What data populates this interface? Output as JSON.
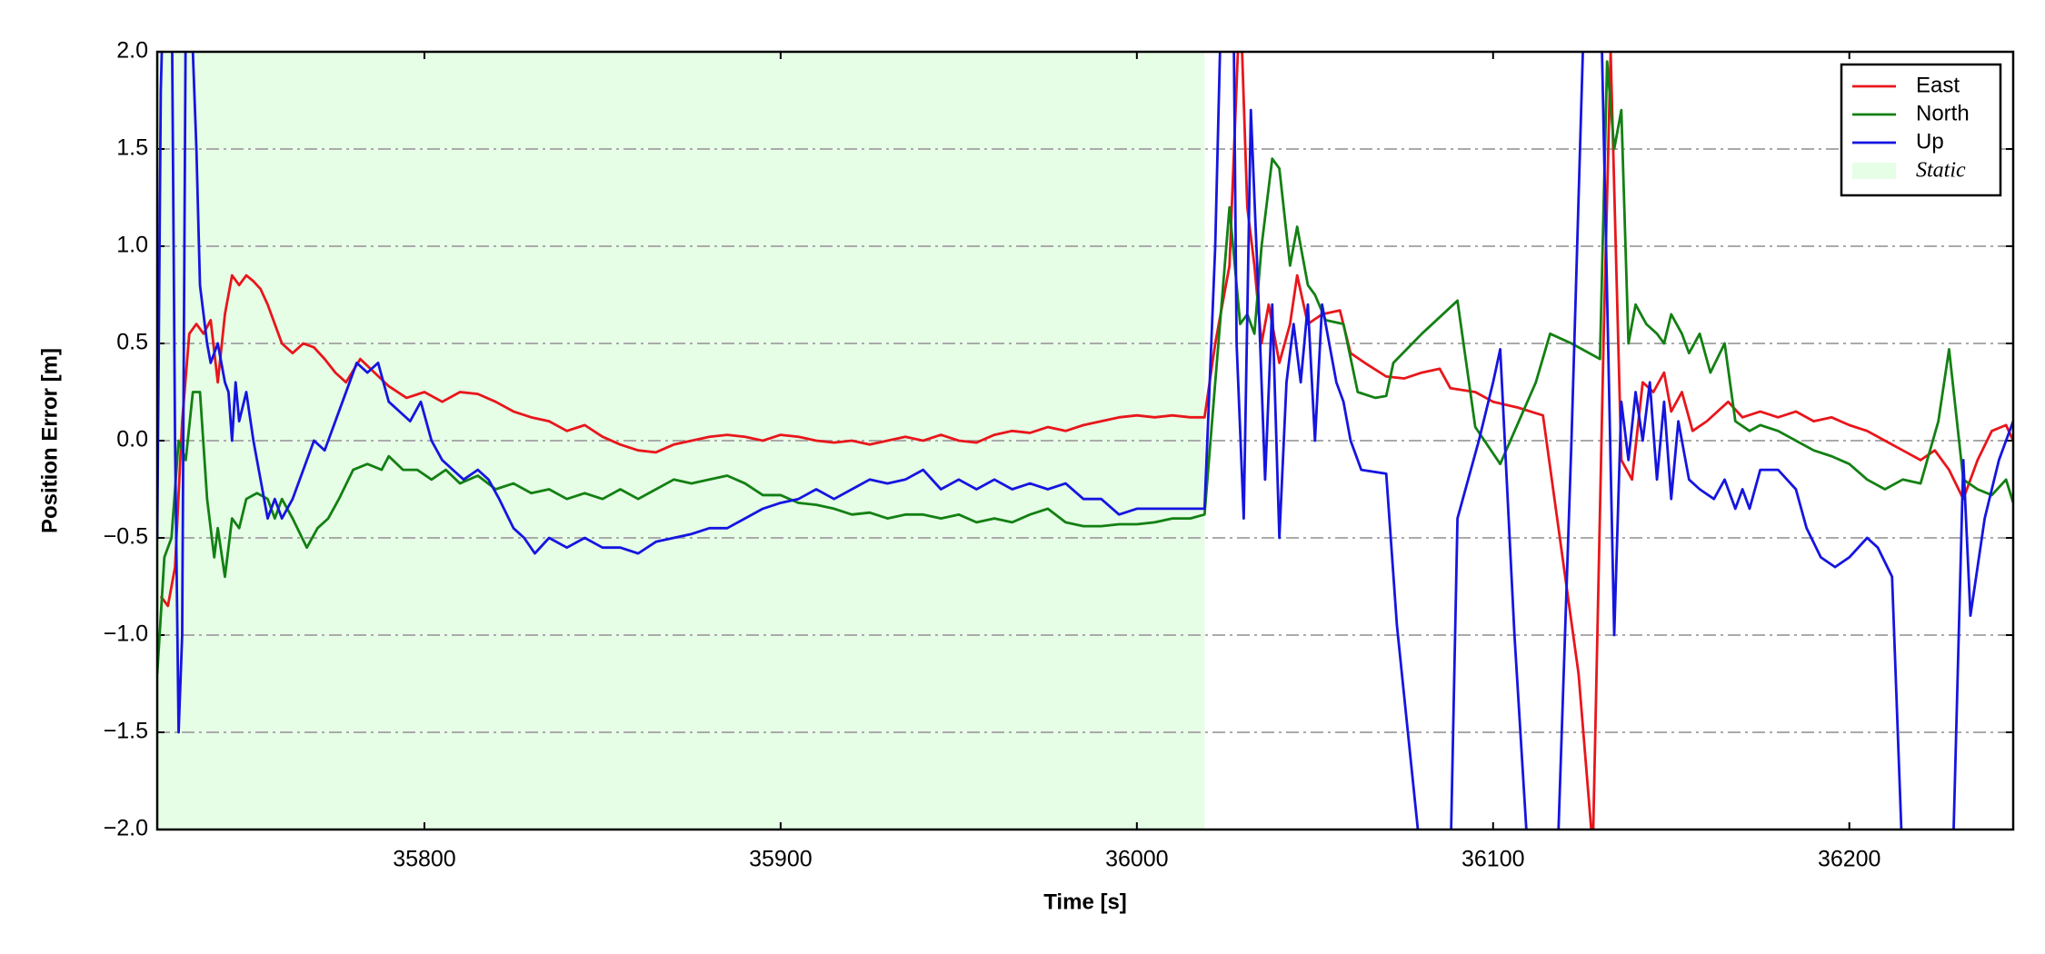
{
  "chart_data": {
    "type": "line",
    "xlabel": "Time [s]",
    "ylabel": "Position Error [m]",
    "xlim": [
      35725,
      36246
    ],
    "ylim": [
      -2,
      2
    ],
    "xticks": [
      35800,
      35900,
      36000,
      36100,
      36200
    ],
    "yticks": [
      {
        "value": -2,
        "label": "−2.0"
      },
      {
        "value": -1.5,
        "label": "−1.5"
      },
      {
        "value": -1,
        "label": "−1.0"
      },
      {
        "value": -0.5,
        "label": "−0.5"
      },
      {
        "value": 0,
        "label": "0.0"
      },
      {
        "value": 0.5,
        "label": "0.5"
      },
      {
        "value": 1,
        "label": "1.0"
      },
      {
        "value": 1.5,
        "label": "1.5"
      },
      {
        "value": 2,
        "label": "2.0"
      }
    ],
    "grid": true,
    "legend": "upper right",
    "static_region": {
      "label": "Static",
      "xrange": [
        35725,
        36019
      ],
      "color": "#e6fde6"
    },
    "series": [
      {
        "name": "East",
        "color": "#e8161b",
        "x": [
          35726,
          35728,
          35730,
          35732,
          35734,
          35736,
          35738,
          35740,
          35742,
          35744,
          35746,
          35748,
          35750,
          35752,
          35754,
          35756,
          35758,
          35760,
          35763,
          35766,
          35769,
          35772,
          35775,
          35778,
          35782,
          35786,
          35790,
          35795,
          35800,
          35805,
          35810,
          35815,
          35820,
          35825,
          35830,
          35835,
          35840,
          35845,
          35850,
          35855,
          35860,
          35865,
          35870,
          35875,
          35880,
          35885,
          35890,
          35895,
          35900,
          35905,
          35910,
          35915,
          35920,
          35925,
          35930,
          35935,
          35940,
          35945,
          35950,
          35955,
          35960,
          35965,
          35970,
          35975,
          35980,
          35985,
          35990,
          35995,
          36000,
          36005,
          36010,
          36015,
          36019,
          36022,
          36026,
          36029,
          36031,
          36033,
          36035,
          36037,
          36040,
          36043,
          36045,
          36048,
          36052,
          36057,
          36060,
          36064,
          36070,
          36075,
          36080,
          36085,
          36088,
          36095,
          36100,
          36107,
          36114,
          36124,
          36128,
          36131,
          36133,
          36136,
          36139,
          36142,
          36145,
          36148,
          36150,
          36153,
          36156,
          36160,
          36163,
          36166,
          36170,
          36175,
          36180,
          36185,
          36190,
          36195,
          36200,
          36205,
          36210,
          36215,
          36220,
          36224,
          36228,
          36232,
          36236,
          36240,
          36244,
          36246
        ],
        "values": [
          -0.8,
          -0.85,
          -0.65,
          0.1,
          0.55,
          0.6,
          0.55,
          0.62,
          0.3,
          0.65,
          0.85,
          0.8,
          0.85,
          0.82,
          0.78,
          0.7,
          0.6,
          0.5,
          0.45,
          0.5,
          0.48,
          0.42,
          0.35,
          0.3,
          0.42,
          0.35,
          0.28,
          0.22,
          0.25,
          0.2,
          0.25,
          0.24,
          0.2,
          0.15,
          0.12,
          0.1,
          0.05,
          0.08,
          0.02,
          -0.02,
          -0.05,
          -0.06,
          -0.02,
          0.0,
          0.02,
          0.03,
          0.02,
          0.0,
          0.03,
          0.02,
          0.0,
          -0.01,
          0.0,
          -0.02,
          0.0,
          0.02,
          0.0,
          0.03,
          0.0,
          -0.01,
          0.03,
          0.05,
          0.04,
          0.07,
          0.05,
          0.08,
          0.1,
          0.12,
          0.13,
          0.12,
          0.13,
          0.12,
          0.12,
          0.5,
          0.9,
          2.3,
          1.2,
          0.9,
          0.5,
          0.7,
          0.4,
          0.6,
          0.85,
          0.6,
          0.65,
          0.67,
          0.45,
          0.4,
          0.33,
          0.32,
          0.35,
          0.37,
          0.27,
          0.25,
          0.2,
          0.17,
          0.13,
          -1.2,
          -2.1,
          0.5,
          2.0,
          -0.1,
          -0.2,
          0.3,
          0.25,
          0.35,
          0.15,
          0.25,
          0.05,
          0.1,
          0.15,
          0.2,
          0.12,
          0.15,
          0.12,
          0.15,
          0.1,
          0.12,
          0.08,
          0.05,
          0.0,
          -0.05,
          -0.1,
          -0.05,
          -0.15,
          -0.3,
          -0.1,
          0.05,
          0.08,
          0.0
        ]
      },
      {
        "name": "North",
        "color": "#138013",
        "x": [
          35725,
          35727,
          35729,
          35731,
          35733,
          35735,
          35737,
          35739,
          35741,
          35742,
          35744,
          35746,
          35748,
          35750,
          35753,
          35756,
          35758,
          35760,
          35763,
          35767,
          35770,
          35773,
          35776,
          35780,
          35784,
          35788,
          35790,
          35794,
          35798,
          35802,
          35806,
          35810,
          35815,
          35820,
          35825,
          35830,
          35835,
          35840,
          35845,
          35850,
          35855,
          35860,
          35865,
          35870,
          35875,
          35880,
          35885,
          35890,
          35895,
          35900,
          35905,
          35910,
          35915,
          35920,
          35925,
          35930,
          35935,
          35940,
          35945,
          35950,
          35955,
          35960,
          35965,
          35970,
          35975,
          35980,
          35985,
          35990,
          35995,
          36000,
          36005,
          36010,
          36015,
          36019,
          36022,
          36026,
          36029,
          36031,
          36033,
          36035,
          36038,
          36040,
          36043,
          36045,
          36048,
          36050,
          36053,
          36058,
          36062,
          36067,
          36070,
          36072,
          36080,
          36090,
          36095,
          36102,
          36112,
          36116,
          36122,
          36130,
          36132,
          36134,
          36136,
          36138,
          36140,
          36143,
          36146,
          36148,
          36150,
          36153,
          36155,
          36158,
          36161,
          36165,
          36168,
          36172,
          36175,
          36180,
          36185,
          36190,
          36195,
          36200,
          36205,
          36210,
          36215,
          36220,
          36225,
          36228,
          36232,
          36236,
          36240,
          36244,
          36246
        ],
        "values": [
          -1.2,
          -0.6,
          -0.5,
          0.0,
          -0.1,
          0.25,
          0.25,
          -0.3,
          -0.6,
          -0.45,
          -0.7,
          -0.4,
          -0.45,
          -0.3,
          -0.27,
          -0.3,
          -0.4,
          -0.3,
          -0.4,
          -0.55,
          -0.45,
          -0.4,
          -0.3,
          -0.15,
          -0.12,
          -0.15,
          -0.08,
          -0.15,
          -0.15,
          -0.2,
          -0.15,
          -0.22,
          -0.18,
          -0.25,
          -0.22,
          -0.27,
          -0.25,
          -0.3,
          -0.27,
          -0.3,
          -0.25,
          -0.3,
          -0.25,
          -0.2,
          -0.22,
          -0.2,
          -0.18,
          -0.22,
          -0.28,
          -0.28,
          -0.32,
          -0.33,
          -0.35,
          -0.38,
          -0.37,
          -0.4,
          -0.38,
          -0.38,
          -0.4,
          -0.38,
          -0.42,
          -0.4,
          -0.42,
          -0.38,
          -0.35,
          -0.42,
          -0.44,
          -0.44,
          -0.43,
          -0.43,
          -0.42,
          -0.4,
          -0.4,
          -0.38,
          0.3,
          1.2,
          0.6,
          0.65,
          0.55,
          1.0,
          1.45,
          1.4,
          0.9,
          1.1,
          0.8,
          0.75,
          0.62,
          0.6,
          0.25,
          0.22,
          0.23,
          0.4,
          0.55,
          0.72,
          0.07,
          -0.12,
          0.3,
          0.55,
          0.5,
          0.42,
          1.95,
          1.5,
          1.7,
          0.5,
          0.7,
          0.6,
          0.55,
          0.5,
          0.65,
          0.55,
          0.45,
          0.55,
          0.35,
          0.5,
          0.1,
          0.05,
          0.08,
          0.05,
          0.0,
          -0.05,
          -0.08,
          -0.12,
          -0.2,
          -0.25,
          -0.2,
          -0.22,
          0.1,
          0.47,
          -0.2,
          -0.25,
          -0.28,
          -0.2,
          -0.32
        ]
      },
      {
        "name": "Up",
        "color": "#1515e0",
        "x": [
          35725,
          35726,
          35727,
          35729,
          35730,
          35731,
          35732,
          35733,
          35734,
          35735,
          35736,
          35737,
          35738,
          35739,
          35740,
          35742,
          35744,
          35745,
          35746,
          35747,
          35748,
          35750,
          35752,
          35754,
          35756,
          35758,
          35760,
          35763,
          35766,
          35769,
          35772,
          35775,
          35778,
          35781,
          35784,
          35787,
          35790,
          35793,
          35796,
          35799,
          35802,
          35805,
          35808,
          35811,
          35815,
          35818,
          35821,
          35825,
          35828,
          35831,
          35835,
          35840,
          35845,
          35850,
          35855,
          35860,
          35865,
          35870,
          35875,
          35880,
          35885,
          35890,
          35895,
          35900,
          35905,
          35910,
          35915,
          35920,
          35925,
          35930,
          35935,
          35940,
          35945,
          35950,
          35955,
          35960,
          35965,
          35970,
          35975,
          35980,
          35985,
          35990,
          35995,
          36000,
          36005,
          36010,
          36015,
          36019,
          36022,
          36024,
          36027,
          36028,
          36030,
          36032,
          36034,
          36036,
          36038,
          36040,
          36042,
          36044,
          36046,
          36048,
          36050,
          36052,
          36054,
          36056,
          36058,
          36060,
          36063,
          36070,
          36073,
          36080,
          36088,
          36090,
          36093,
          36096,
          36100,
          36102,
          36106,
          36110,
          36118,
          36122,
          36126,
          36130,
          36134,
          36136,
          36138,
          36140,
          36142,
          36144,
          36146,
          36148,
          36150,
          36152,
          36155,
          36158,
          36162,
          36165,
          36168,
          36170,
          36172,
          36175,
          36180,
          36185,
          36188,
          36192,
          36196,
          36200,
          36205,
          36208,
          36212,
          36215,
          36222,
          36229,
          36232,
          36234,
          36238,
          36242,
          36246
        ],
        "values": [
          -0.5,
          1.8,
          2.5,
          2.5,
          0.0,
          -1.5,
          -1.0,
          2.2,
          2.5,
          2.0,
          1.5,
          0.8,
          0.65,
          0.5,
          0.4,
          0.5,
          0.3,
          0.25,
          0.0,
          0.3,
          0.1,
          0.25,
          0.0,
          -0.2,
          -0.4,
          -0.3,
          -0.4,
          -0.3,
          -0.15,
          0.0,
          -0.05,
          0.1,
          0.25,
          0.4,
          0.35,
          0.4,
          0.2,
          0.15,
          0.1,
          0.2,
          0.0,
          -0.1,
          -0.15,
          -0.2,
          -0.15,
          -0.2,
          -0.3,
          -0.45,
          -0.5,
          -0.58,
          -0.5,
          -0.55,
          -0.5,
          -0.55,
          -0.55,
          -0.58,
          -0.52,
          -0.5,
          -0.48,
          -0.45,
          -0.45,
          -0.4,
          -0.35,
          -0.32,
          -0.3,
          -0.25,
          -0.3,
          -0.25,
          -0.2,
          -0.22,
          -0.2,
          -0.15,
          -0.25,
          -0.2,
          -0.25,
          -0.2,
          -0.25,
          -0.22,
          -0.25,
          -0.22,
          -0.3,
          -0.3,
          -0.38,
          -0.35,
          -0.35,
          -0.35,
          -0.35,
          -0.35,
          1.0,
          2.5,
          2.5,
          0.5,
          -0.4,
          1.7,
          0.8,
          -0.2,
          0.7,
          -0.5,
          0.3,
          0.6,
          0.3,
          0.7,
          0.0,
          0.7,
          0.5,
          0.3,
          0.2,
          0.0,
          -0.15,
          -0.17,
          -0.95,
          -2.2,
          -2.2,
          -0.4,
          -0.2,
          0.0,
          0.3,
          0.47,
          -1.0,
          -2.2,
          -2.2,
          0.0,
          2.5,
          2.5,
          -1.0,
          0.2,
          -0.1,
          0.25,
          0.0,
          0.3,
          -0.2,
          0.2,
          -0.3,
          0.1,
          -0.2,
          -0.25,
          -0.3,
          -0.2,
          -0.35,
          -0.25,
          -0.35,
          -0.15,
          -0.15,
          -0.25,
          -0.45,
          -0.6,
          -0.65,
          -0.6,
          -0.5,
          -0.55,
          -0.7,
          -2.2,
          -2.2,
          -2.2,
          -0.1,
          -0.9,
          -0.4,
          -0.1,
          0.1
        ]
      }
    ]
  }
}
